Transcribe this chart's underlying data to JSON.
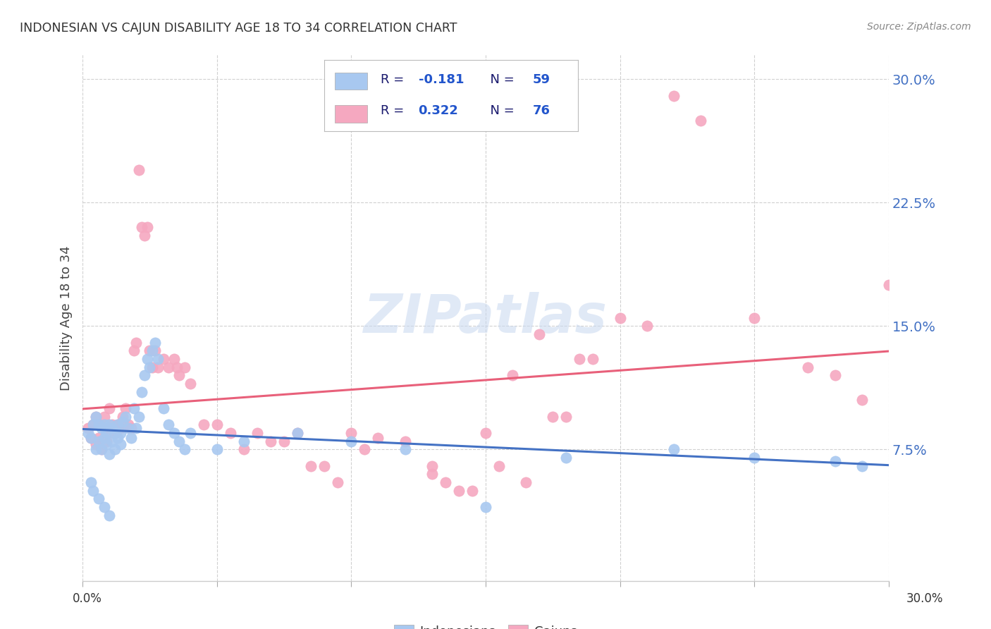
{
  "title": "INDONESIAN VS CAJUN DISABILITY AGE 18 TO 34 CORRELATION CHART",
  "source": "Source: ZipAtlas.com",
  "ylabel": "Disability Age 18 to 34",
  "ytick_labels": [
    "7.5%",
    "15.0%",
    "22.5%",
    "30.0%"
  ],
  "ytick_values": [
    0.075,
    0.15,
    0.225,
    0.3
  ],
  "xlim": [
    0.0,
    0.3
  ],
  "ylim": [
    -0.005,
    0.315
  ],
  "watermark": "ZIPatlas",
  "indonesian_color": "#a8c8f0",
  "cajun_color": "#f5a8c0",
  "indonesian_line_color": "#4472c4",
  "cajun_line_color": "#e8607a",
  "legend_r1": "R = ",
  "legend_r1_val": "-0.181",
  "legend_n1": "N = ",
  "legend_n1_val": "59",
  "legend_r2": "R = ",
  "legend_r2_val": "0.322",
  "legend_n2": "N = ",
  "legend_n2_val": "76",
  "legend_text_color": "#1a1a6e",
  "legend_val_color": "#2255cc",
  "indonesian_x": [
    0.002,
    0.003,
    0.004,
    0.005,
    0.005,
    0.006,
    0.006,
    0.007,
    0.007,
    0.008,
    0.008,
    0.009,
    0.009,
    0.01,
    0.01,
    0.011,
    0.011,
    0.012,
    0.012,
    0.013,
    0.013,
    0.014,
    0.014,
    0.015,
    0.016,
    0.017,
    0.018,
    0.019,
    0.02,
    0.021,
    0.022,
    0.023,
    0.024,
    0.025,
    0.026,
    0.027,
    0.028,
    0.03,
    0.032,
    0.034,
    0.036,
    0.038,
    0.04,
    0.05,
    0.06,
    0.08,
    0.1,
    0.12,
    0.15,
    0.18,
    0.22,
    0.25,
    0.28,
    0.29,
    0.003,
    0.004,
    0.006,
    0.008,
    0.01
  ],
  "indonesian_y": [
    0.085,
    0.082,
    0.09,
    0.075,
    0.095,
    0.08,
    0.09,
    0.075,
    0.088,
    0.082,
    0.09,
    0.078,
    0.085,
    0.072,
    0.09,
    0.08,
    0.088,
    0.085,
    0.075,
    0.082,
    0.09,
    0.078,
    0.085,
    0.092,
    0.095,
    0.088,
    0.082,
    0.1,
    0.088,
    0.095,
    0.11,
    0.12,
    0.13,
    0.125,
    0.135,
    0.14,
    0.13,
    0.1,
    0.09,
    0.085,
    0.08,
    0.075,
    0.085,
    0.075,
    0.08,
    0.085,
    0.08,
    0.075,
    0.04,
    0.07,
    0.075,
    0.07,
    0.068,
    0.065,
    0.055,
    0.05,
    0.045,
    0.04,
    0.035
  ],
  "cajun_x": [
    0.002,
    0.003,
    0.004,
    0.005,
    0.005,
    0.006,
    0.006,
    0.007,
    0.008,
    0.008,
    0.009,
    0.01,
    0.01,
    0.011,
    0.012,
    0.013,
    0.014,
    0.015,
    0.016,
    0.017,
    0.018,
    0.019,
    0.02,
    0.021,
    0.022,
    0.023,
    0.024,
    0.025,
    0.026,
    0.027,
    0.028,
    0.03,
    0.032,
    0.034,
    0.036,
    0.038,
    0.04,
    0.05,
    0.06,
    0.07,
    0.08,
    0.09,
    0.1,
    0.11,
    0.12,
    0.13,
    0.14,
    0.15,
    0.16,
    0.17,
    0.18,
    0.19,
    0.2,
    0.22,
    0.23,
    0.25,
    0.27,
    0.28,
    0.29,
    0.3,
    0.035,
    0.045,
    0.055,
    0.065,
    0.075,
    0.085,
    0.095,
    0.105,
    0.13,
    0.135,
    0.145,
    0.155,
    0.165,
    0.175,
    0.185,
    0.21
  ],
  "cajun_y": [
    0.088,
    0.082,
    0.09,
    0.078,
    0.095,
    0.082,
    0.09,
    0.075,
    0.088,
    0.095,
    0.08,
    0.085,
    0.1,
    0.09,
    0.085,
    0.09,
    0.088,
    0.095,
    0.1,
    0.09,
    0.088,
    0.135,
    0.14,
    0.245,
    0.21,
    0.205,
    0.21,
    0.135,
    0.125,
    0.135,
    0.125,
    0.13,
    0.125,
    0.13,
    0.12,
    0.125,
    0.115,
    0.09,
    0.075,
    0.08,
    0.085,
    0.065,
    0.085,
    0.082,
    0.08,
    0.06,
    0.05,
    0.085,
    0.12,
    0.145,
    0.095,
    0.13,
    0.155,
    0.29,
    0.275,
    0.155,
    0.125,
    0.12,
    0.105,
    0.175,
    0.125,
    0.09,
    0.085,
    0.085,
    0.08,
    0.065,
    0.055,
    0.075,
    0.065,
    0.055,
    0.05,
    0.065,
    0.055,
    0.095,
    0.13,
    0.15
  ]
}
